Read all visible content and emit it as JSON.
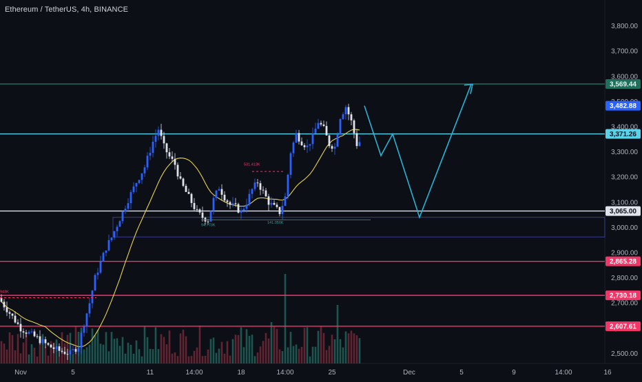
{
  "header": {
    "symbol_title": "Ethereum / TetherUS, 4h, BINANCE"
  },
  "colors": {
    "background": "#0d0f17",
    "up_candle": "#2962ff",
    "down_candle": "#e0e3eb",
    "ma_line": "#e8d44d",
    "projection": "#26b5d6",
    "level_white": "#e0e3eb",
    "level_cyan": "#5ad2e8",
    "level_red": "#f23668",
    "level_teal": "#1e6f5c",
    "volume_up": "#1e5e55",
    "volume_down": "#6b2733",
    "current_price_tag": "#2962ff"
  },
  "chart_data": {
    "type": "candlestick",
    "title": "Ethereum / TetherUS, 4h, BINANCE",
    "ylim": [
      2460,
      3870
    ],
    "y_ticks": [
      "3,800.00",
      "3,700.00",
      "3,600.00",
      "3,500.00",
      "3,400.00",
      "3,300.00",
      "3,200.00",
      "3,100.00",
      "3,000.00",
      "2,900.00",
      "2,800.00",
      "2,700.00",
      "2,600.00",
      "2,500.00"
    ],
    "y_tick_values": [
      3800,
      3700,
      3600,
      3500,
      3400,
      3300,
      3200,
      3100,
      3000,
      2900,
      2800,
      2700,
      2600,
      2500
    ],
    "x_ticks": [
      "Nov",
      "5",
      "11",
      "14:00",
      "18",
      "14:00",
      "25",
      "Dec",
      "5",
      "9",
      "14:00",
      "16"
    ],
    "price_levels": [
      {
        "label": "3,569.44",
        "value": 3569.44,
        "color": "#1e6f5c",
        "tag_text_color": "#e0f2ec"
      },
      {
        "label": "3,371.26",
        "value": 3371.26,
        "color": "#5ad2e8",
        "tag_text_color": "#0d0f17"
      },
      {
        "label": "3,065.00",
        "value": 3065.0,
        "color": "#e0e3eb",
        "tag_text_color": "#0d0f17"
      },
      {
        "label": "2,865.28",
        "value": 2865.28,
        "color": "#f23668",
        "tag_text_color": "#ffffff"
      },
      {
        "label": "2,730.18",
        "value": 2730.18,
        "color": "#f23668",
        "tag_text_color": "#ffffff"
      },
      {
        "label": "2,607.61",
        "value": 2607.61,
        "color": "#f23668",
        "tag_text_color": "#ffffff"
      }
    ],
    "current_price": {
      "label": "3,482.88",
      "value": 3482.88
    },
    "range_box": {
      "top": 3040,
      "bottom": 2962
    },
    "annotations": [
      {
        "text": "531.413K",
        "x": 3.83,
        "y": 3222
      },
      {
        "text": "94.773K",
        "x": 3.5,
        "y": 3010
      },
      {
        "text": "141.050K",
        "x": 4.3,
        "y": 3020
      },
      {
        "text": "943K",
        "x": 0.0,
        "y": 2721
      }
    ],
    "projection_path": [
      {
        "x": 27.0,
        "y": 3482.88
      },
      {
        "x": 29.2,
        "y": 3285
      },
      {
        "x": 30.5,
        "y": 3371
      },
      {
        "x": 32.4,
        "y": 3040
      },
      {
        "x": 35.2,
        "y": 3568
      }
    ]
  }
}
